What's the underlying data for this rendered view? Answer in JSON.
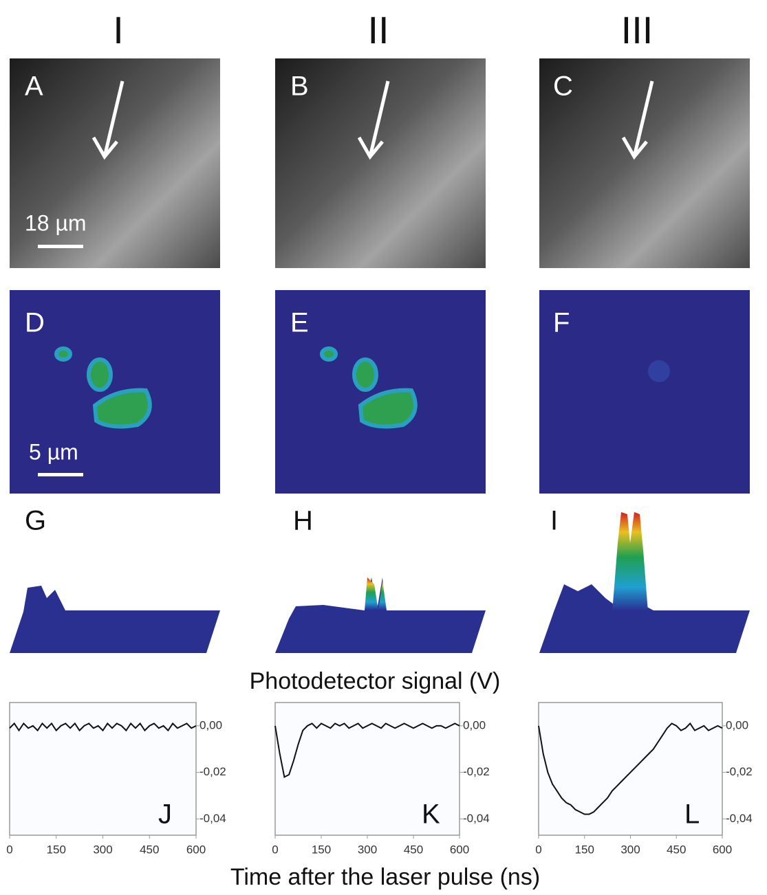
{
  "columns": [
    "I",
    "II",
    "III"
  ],
  "image_panels": [
    "A",
    "B",
    "C"
  ],
  "map_panels": [
    "D",
    "E",
    "F"
  ],
  "scale_bars": [
    "18 µm",
    "5 µm"
  ],
  "surface_panels": [
    "G",
    "H",
    "I"
  ],
  "y_axis_title": "Photodetector signal (V)",
  "x_axis_title": "Time after the laser pulse  (ns)",
  "chart_data": [
    {
      "type": "line",
      "label": "J",
      "color": "#111111",
      "x": [
        0,
        15,
        30,
        45,
        60,
        75,
        90,
        105,
        120,
        135,
        150,
        165,
        180,
        195,
        210,
        225,
        240,
        255,
        270,
        285,
        300,
        315,
        330,
        345,
        360,
        375,
        390,
        405,
        420,
        435,
        450,
        465,
        480,
        495,
        510,
        525,
        540,
        555,
        570,
        585,
        600
      ],
      "values": [
        -0.001,
        0.001,
        -0.002,
        0.001,
        -0.001,
        0.0,
        -0.002,
        0.001,
        -0.001,
        0.001,
        -0.002,
        0.0,
        0.001,
        -0.001,
        0.001,
        -0.002,
        0.0,
        0.001,
        -0.001,
        0.0,
        -0.002,
        0.001,
        -0.001,
        0.001,
        0.0,
        -0.002,
        0.001,
        -0.001,
        0.001,
        -0.002,
        0.0,
        0.001,
        -0.001,
        0.0,
        -0.002,
        0.001,
        -0.001,
        0.0,
        0.001,
        -0.001,
        0.0
      ],
      "xlim": [
        0,
        600
      ],
      "xticks": [
        0,
        150,
        300,
        450,
        600
      ],
      "ylim": [
        -0.047,
        0.01
      ],
      "yticks": [
        {
          "value": 0,
          "label": "0,00"
        },
        {
          "value": -0.02,
          "label": "-0,02"
        },
        {
          "value": -0.04,
          "label": "-0,04"
        }
      ]
    },
    {
      "type": "line",
      "label": "K",
      "color": "#111111",
      "x": [
        0,
        15,
        30,
        45,
        60,
        75,
        90,
        105,
        120,
        135,
        150,
        165,
        180,
        195,
        210,
        225,
        240,
        255,
        270,
        285,
        300,
        315,
        330,
        345,
        360,
        375,
        390,
        405,
        420,
        435,
        450,
        465,
        480,
        495,
        510,
        525,
        540,
        555,
        570,
        585,
        600
      ],
      "values": [
        0.0,
        -0.012,
        -0.022,
        -0.021,
        -0.015,
        -0.008,
        -0.002,
        0.0,
        0.001,
        -0.001,
        0.001,
        0.0,
        -0.001,
        0.001,
        0.0,
        0.001,
        -0.001,
        0.0,
        0.001,
        -0.001,
        0.0,
        0.001,
        0.0,
        -0.001,
        0.001,
        0.0,
        -0.001,
        0.0,
        0.001,
        0.0,
        -0.001,
        0.0,
        0.001,
        0.0,
        -0.001,
        0.0,
        0.0,
        -0.001,
        0.0,
        0.001,
        0.0
      ],
      "xlim": [
        0,
        600
      ],
      "xticks": [
        0,
        150,
        300,
        450,
        600
      ],
      "ylim": [
        -0.047,
        0.01
      ],
      "yticks": [
        {
          "value": 0,
          "label": "0,00"
        },
        {
          "value": -0.02,
          "label": "-0,02"
        },
        {
          "value": -0.04,
          "label": "-0,04"
        }
      ]
    },
    {
      "type": "line",
      "label": "L",
      "color": "#111111",
      "x": [
        0,
        15,
        30,
        45,
        60,
        75,
        90,
        105,
        120,
        135,
        150,
        165,
        180,
        195,
        210,
        225,
        240,
        255,
        270,
        285,
        300,
        315,
        330,
        345,
        360,
        375,
        390,
        405,
        420,
        435,
        450,
        465,
        480,
        495,
        510,
        525,
        540,
        555,
        570,
        585,
        600
      ],
      "values": [
        0.0,
        -0.012,
        -0.02,
        -0.025,
        -0.028,
        -0.031,
        -0.033,
        -0.034,
        -0.036,
        -0.037,
        -0.038,
        -0.038,
        -0.037,
        -0.035,
        -0.033,
        -0.031,
        -0.028,
        -0.026,
        -0.024,
        -0.022,
        -0.02,
        -0.018,
        -0.016,
        -0.014,
        -0.012,
        -0.01,
        -0.007,
        -0.004,
        -0.001,
        0.001,
        0.0,
        -0.002,
        -0.001,
        0.001,
        -0.002,
        -0.001,
        0.0,
        -0.002,
        -0.001,
        0.0,
        -0.001
      ],
      "xlim": [
        0,
        600
      ],
      "xticks": [
        0,
        150,
        300,
        450,
        600
      ],
      "ylim": [
        -0.047,
        0.01
      ],
      "yticks": [
        {
          "value": 0,
          "label": "0,00"
        },
        {
          "value": -0.02,
          "label": "-0,02"
        },
        {
          "value": -0.04,
          "label": "-0,04"
        }
      ]
    }
  ]
}
